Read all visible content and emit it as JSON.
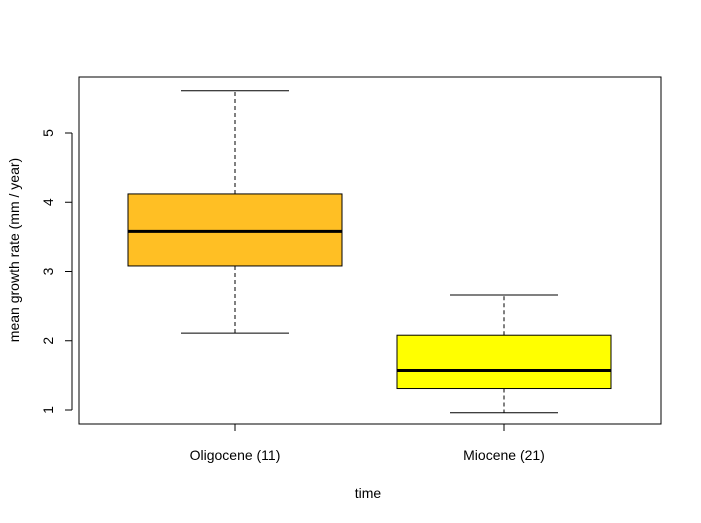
{
  "chart_data": {
    "type": "boxplot",
    "title": "",
    "xlabel": "time",
    "ylabel": "mean growth rate (mm / year)",
    "ylim": [
      0.8,
      5.8
    ],
    "yticks": [
      "1",
      "2",
      "3",
      "4",
      "5"
    ],
    "grid": false,
    "legend": "none",
    "categories": [
      "Oligocene (11)",
      "Miocene (21)"
    ],
    "boxes": [
      {
        "label": "Oligocene (11)",
        "whisker_low": 2.11,
        "q1": 3.08,
        "median": 3.58,
        "q3": 4.12,
        "whisker_high": 5.61,
        "color": "#FFBF24"
      },
      {
        "label": "Miocene (21)",
        "whisker_low": 0.96,
        "q1": 1.31,
        "median": 1.57,
        "q3": 2.08,
        "whisker_high": 2.66,
        "color": "#FFFF00"
      }
    ]
  }
}
